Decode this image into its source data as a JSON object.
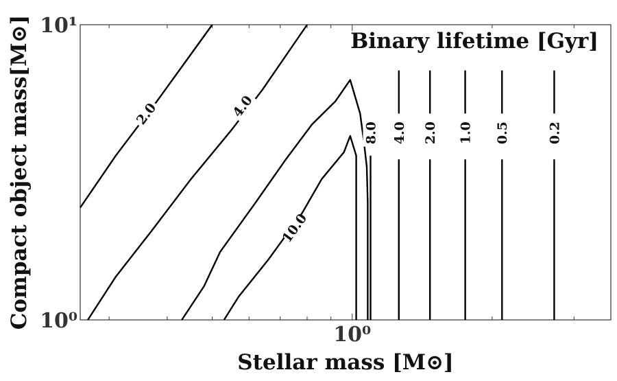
{
  "chart_data": {
    "type": "contour",
    "title": "Binary lifetime [Gyr]",
    "xlabel": "Stellar mass [M⊙]",
    "ylabel": "Compact object mass[M⊙]",
    "xscale": "log",
    "yscale": "log",
    "xlim": [
      0.26,
      3.6
    ],
    "ylim": [
      1,
      10
    ],
    "xticks": [
      {
        "value": 1,
        "label": "10⁰"
      }
    ],
    "yticks": [
      {
        "value": 1,
        "label": "10⁰"
      },
      {
        "value": 10,
        "label": "10¹"
      }
    ],
    "grid": false,
    "contour_lines": [
      {
        "level": 2.0,
        "label": "2.0",
        "points": [
          [
            0.26,
            2.4
          ],
          [
            0.31,
            3.6
          ],
          [
            0.38,
            5.5
          ],
          [
            0.5,
            10.0
          ]
        ],
        "label_at": [
          0.36,
          5.0
        ]
      },
      {
        "level": 2.0,
        "label": "",
        "points": [
          [
            0.27,
            1.0
          ],
          [
            0.31,
            1.4
          ],
          [
            0.37,
            2.0
          ],
          [
            0.45,
            3.0
          ],
          [
            0.55,
            4.4
          ],
          [
            0.64,
            6.0
          ],
          [
            0.8,
            10.0
          ]
        ],
        "label_at": null
      },
      {
        "level": 4.0,
        "label": "4.0",
        "points": [
          [
            0.43,
            1.0
          ],
          [
            0.48,
            1.3
          ],
          [
            0.52,
            1.7
          ],
          [
            0.62,
            2.5
          ],
          [
            0.72,
            3.5
          ],
          [
            0.82,
            4.6
          ],
          [
            0.92,
            5.5
          ],
          [
            0.99,
            6.5
          ],
          [
            1.04,
            5.0
          ],
          [
            1.06,
            4.0
          ],
          [
            1.075,
            3.3
          ],
          [
            1.08,
            2.5
          ],
          [
            1.08,
            1.0
          ]
        ],
        "label_at": [
          0.58,
          5.3
        ]
      },
      {
        "level": 10.0,
        "label": "10.0",
        "points": [
          [
            0.53,
            1.0
          ],
          [
            0.57,
            1.2
          ],
          [
            0.66,
            1.6
          ],
          [
            0.78,
            2.3
          ],
          [
            0.86,
            3.0
          ],
          [
            0.96,
            3.7
          ],
          [
            0.99,
            4.2
          ],
          [
            1.02,
            3.6
          ],
          [
            1.02,
            1.0
          ]
        ],
        "label_at": [
          0.75,
          2.05
        ]
      },
      {
        "level": 8.0,
        "label": "8.0",
        "points": [
          [
            1.095,
            1.0
          ],
          [
            1.095,
            3.6
          ]
        ],
        "label_at": [
          1.095,
          4.3
        ]
      },
      {
        "level": 4.0,
        "label": "4.0",
        "points": [
          [
            1.26,
            1.0
          ],
          [
            1.26,
            3.5
          ]
        ],
        "label_at": [
          1.26,
          4.3
        ]
      },
      {
        "level": 2.0,
        "label": "2.0",
        "points": [
          [
            1.47,
            1.0
          ],
          [
            1.47,
            3.5
          ]
        ],
        "label_at": [
          1.47,
          4.3
        ]
      },
      {
        "level": 1.0,
        "label": "1.0",
        "points": [
          [
            1.75,
            1.0
          ],
          [
            1.75,
            3.5
          ]
        ],
        "label_at": [
          1.75,
          4.3
        ]
      },
      {
        "level": 0.5,
        "label": "0.5",
        "points": [
          [
            2.1,
            1.0
          ],
          [
            2.1,
            3.5
          ]
        ],
        "label_at": [
          2.1,
          4.3
        ]
      },
      {
        "level": 0.2,
        "label": "0.2",
        "points": [
          [
            2.72,
            1.0
          ],
          [
            2.72,
            3.5
          ]
        ],
        "label_at": [
          2.72,
          4.3
        ]
      }
    ],
    "upper_vertical_segments": [
      1.26,
      1.47,
      1.75,
      2.1,
      2.72
    ],
    "upper_segment_top": 7.0
  }
}
